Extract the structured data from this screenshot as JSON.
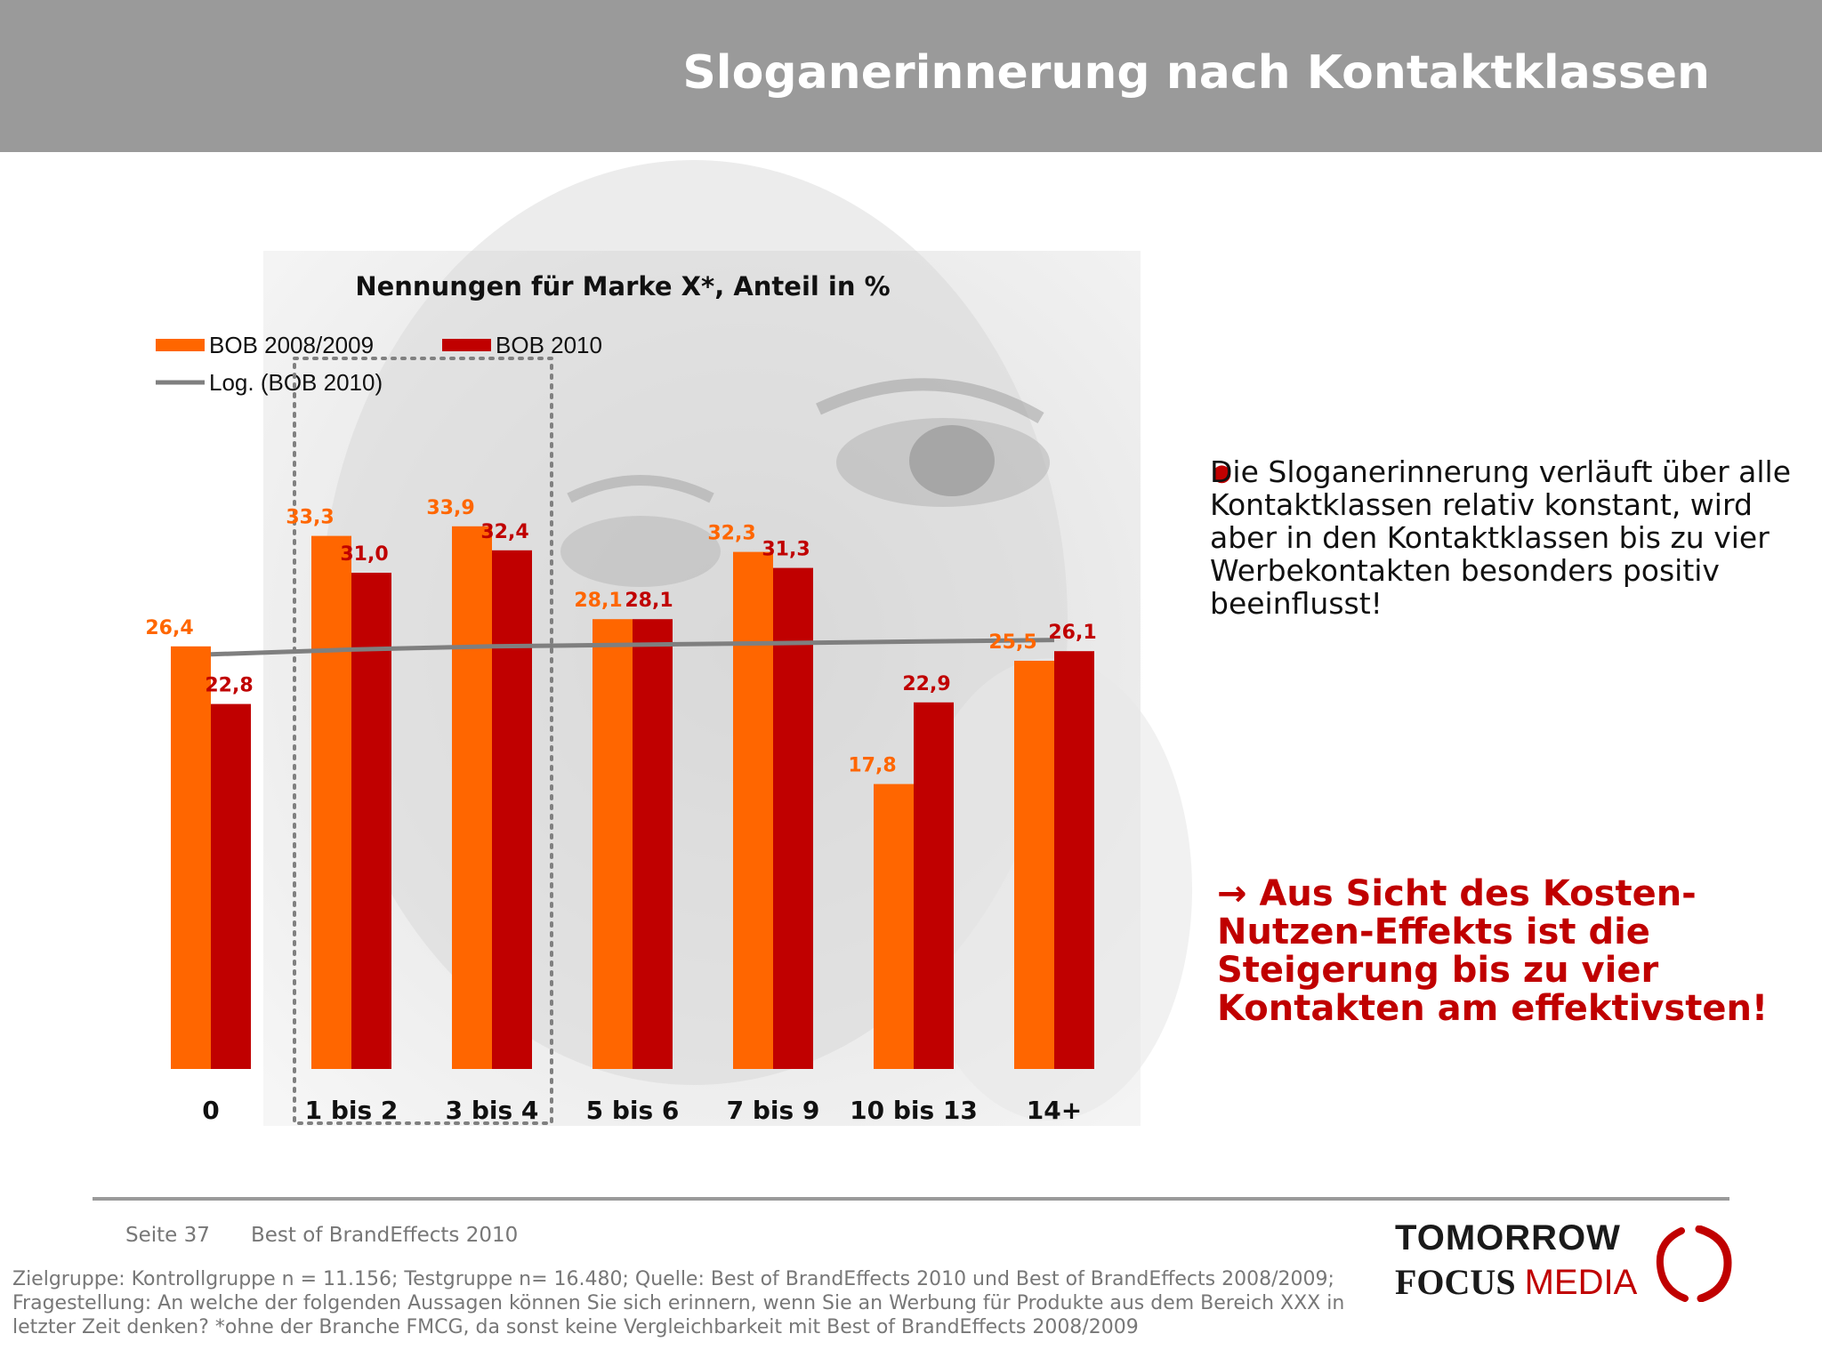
{
  "header": {
    "title": "Sloganerinnerung nach Kontaktklassen"
  },
  "colors": {
    "orange": "#ff6600",
    "red": "#c00000",
    "trend": "#7f7f7f",
    "header_bg": "#9a9a9a"
  },
  "chart_data": {
    "type": "bar",
    "title": "Nennungen für Marke X*, Anteil in %",
    "categories": [
      "0",
      "1 bis 2",
      "3 bis 4",
      "5 bis 6",
      "7 bis 9",
      "10 bis 13",
      "14+"
    ],
    "series": [
      {
        "name": "BOB 2008/2009",
        "color": "#ff6600",
        "values": [
          26.4,
          33.3,
          33.9,
          28.1,
          32.3,
          17.8,
          25.5
        ],
        "labels": [
          "26,4",
          "33,3",
          "33,9",
          "28,1",
          "32,3",
          "17,8",
          "25,5"
        ]
      },
      {
        "name": "BOB 2010",
        "color": "#c00000",
        "values": [
          22.8,
          31.0,
          32.4,
          28.1,
          31.3,
          22.9,
          26.1
        ],
        "labels": [
          "22,8",
          "31,0",
          "32,4",
          "28,1",
          "31,3",
          "22,9",
          "26,1"
        ]
      }
    ],
    "trendline": {
      "name": "Log. (BOB 2010)",
      "type": "logarithmic",
      "values": [
        25.9,
        26.2,
        26.4,
        26.5,
        26.6,
        26.7,
        26.8
      ]
    },
    "highlighted_categories": [
      "1 bis 2",
      "3 bis 4"
    ],
    "ylim": [
      0,
      40
    ],
    "xlabel": "",
    "ylabel": ""
  },
  "bullet": {
    "text": "Die Sloganerinnerung verläuft über alle Kontaktklassen relativ konstant, wird aber in den Kontaktklassen bis zu vier Werbekontakten besonders positiv beeinflusst!"
  },
  "conclusion": {
    "arrow": "→",
    "text": "Aus Sicht des Kosten-Nutzen-Effekts ist die Steigerung bis zu vier Kontakten am effektivsten!"
  },
  "footer": {
    "page": "Seite 37",
    "title": "Best of BrandEffects 2010",
    "footnote": "Zielgruppe: Kontrollgruppe n = 11.156; Testgruppe n= 16.480; Quelle: Best of BrandEffects 2010 und Best of BrandEffects 2008/2009; Fragestellung: An welche der folgenden Aussagen können Sie sich erinnern, wenn Sie an Werbung für Produkte aus dem Bereich XXX in letzter Zeit denken? *ohne der Branche FMCG, da sonst keine Vergleichbarkeit mit Best of BrandEffects 2008/2009"
  },
  "logo": {
    "line1": "TOMORROW",
    "line2a": "FOCUS",
    "line2b": "MEDIA"
  }
}
